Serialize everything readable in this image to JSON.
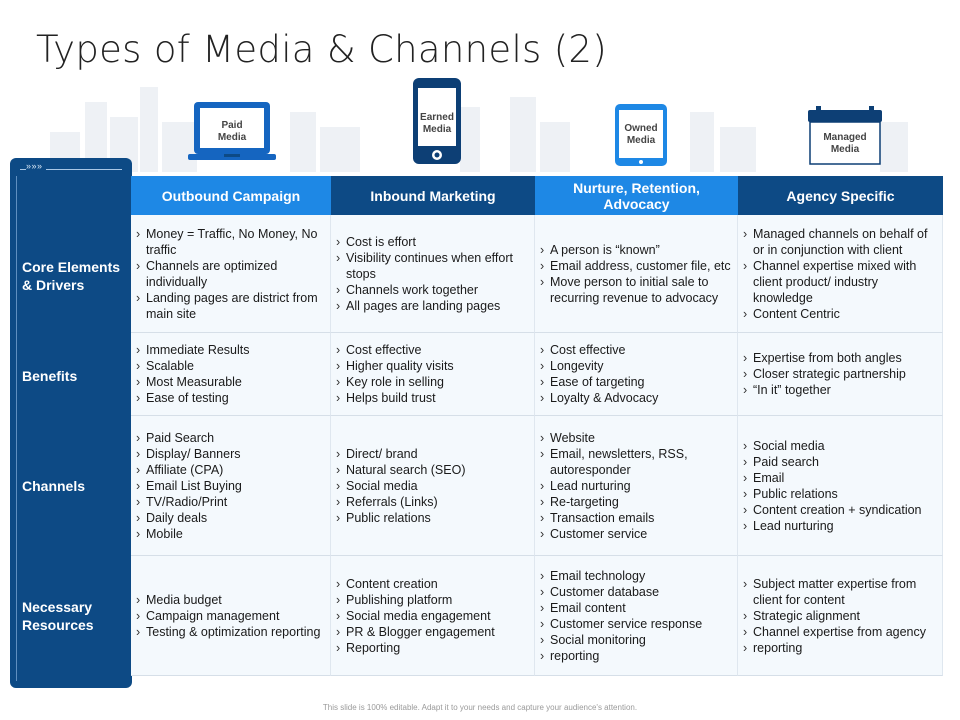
{
  "title": "Types of Media & Channels (2)",
  "devices": [
    {
      "label": "Paid\nMedia",
      "icon": "laptop-icon"
    },
    {
      "label": "Earned\nMedia",
      "icon": "smartphone-icon"
    },
    {
      "label": "Owned\nMedia",
      "icon": "tablet-icon"
    },
    {
      "label": "Managed\nMedia",
      "icon": "calendar-icon"
    }
  ],
  "colors": {
    "sidebar": "#0d4a85",
    "header_light": "#1e88e5",
    "header_dark": "#0d4a85",
    "cell_bg": "#f4f9fd"
  },
  "sidebar_arrows": "»»»",
  "rows": [
    {
      "label": "Core Elements & Drivers"
    },
    {
      "label": "Benefits"
    },
    {
      "label": "Channels"
    },
    {
      "label": "Necessary Resources"
    }
  ],
  "columns": [
    {
      "header": "Outbound Campaign",
      "cells": [
        [
          "Money = Traffic, No Money, No traffic",
          "Channels are optimized individually",
          "Landing pages are district from main site"
        ],
        [
          "Immediate Results",
          "Scalable",
          "Most Measurable",
          "Ease of testing"
        ],
        [
          "Paid Search",
          "Display/ Banners",
          "Affiliate (CPA)",
          "Email List Buying",
          "TV/Radio/Print",
          "Daily deals",
          "Mobile"
        ],
        [
          "Media budget",
          "Campaign management",
          "Testing & optimization reporting"
        ]
      ]
    },
    {
      "header": "Inbound Marketing",
      "cells": [
        [
          "Cost is effort",
          "Visibility continues when effort stops",
          "Channels work together",
          "All pages are landing pages"
        ],
        [
          "Cost effective",
          "Higher quality visits",
          "Key role in selling",
          "Helps build trust"
        ],
        [
          "Direct/ brand",
          "Natural search (SEO)",
          "Social media",
          "Referrals (Links)",
          "Public relations"
        ],
        [
          "Content creation",
          "Publishing platform",
          "Social media engagement",
          "PR & Blogger engagement",
          "Reporting"
        ]
      ]
    },
    {
      "header": "Nurture, Retention, Advocacy",
      "cells": [
        [
          "A person is “known”",
          "Email address, customer file, etc",
          "Move person to initial sale to recurring revenue to advocacy"
        ],
        [
          "Cost effective",
          "Longevity",
          "Ease of targeting",
          "Loyalty & Advocacy"
        ],
        [
          "Website",
          "Email, newsletters, RSS, autoresponder",
          "Lead nurturing",
          "Re-targeting",
          "Transaction emails",
          "Customer service"
        ],
        [
          "Email technology",
          "Customer database",
          "Email content",
          "Customer service response",
          "Social monitoring",
          "reporting"
        ]
      ]
    },
    {
      "header": "Agency Specific",
      "cells": [
        [
          "Managed channels on behalf of or in conjunction with client",
          "Channel expertise mixed with client product/ industry knowledge",
          "Content Centric"
        ],
        [
          "Expertise from both angles",
          "Closer strategic partnership",
          "“In it” together"
        ],
        [
          "Social media",
          "Paid search",
          "Email",
          "Public relations",
          "Content creation + syndication",
          "Lead nurturing"
        ],
        [
          "Subject matter expertise from client for content",
          "Strategic alignment",
          "Channel expertise from agency",
          "reporting"
        ]
      ]
    }
  ],
  "footer": "This slide is 100% editable. Adapt it to your needs and capture your audience's attention."
}
